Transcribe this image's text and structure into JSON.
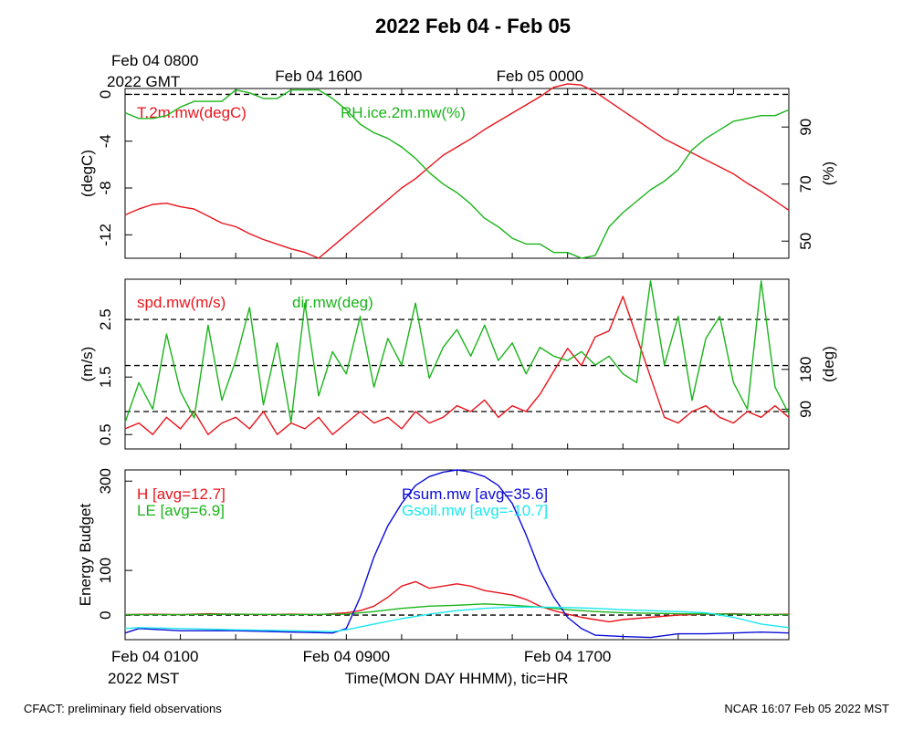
{
  "page": {
    "title": "2022 Feb 04 - Feb 05",
    "footer_left": "CFACT: preliminary field observations",
    "footer_right": "NCAR 16:07 Feb 05 2022 MST"
  },
  "colors": {
    "red": "#e8141c",
    "green": "#1ab41a",
    "blue": "#0a0ad8",
    "cyan": "#18e8ee",
    "black": "#000000"
  },
  "chart_data": [
    {
      "type": "line",
      "panel": "temperature-humidity",
      "top_axis": {
        "title": "Feb 04 0800",
        "title2": "2022 GMT",
        "labels": [
          {
            "x": 7,
            "text": "Feb 04 1600"
          },
          {
            "x": 15,
            "text": "Feb 05 0000"
          }
        ]
      },
      "x_range": [
        0,
        24
      ],
      "x_ticks": [
        0,
        2,
        4,
        6,
        8,
        10,
        12,
        14,
        16,
        18,
        20,
        22,
        24
      ],
      "left_axis": {
        "label": "(degC)",
        "ylim": [
          -14,
          0.5
        ],
        "ticks": [
          0,
          -4,
          -8,
          -12
        ]
      },
      "right_axis": {
        "label": "(%)",
        "ylim": [
          44,
          103.5
        ],
        "ticks": [
          90,
          70,
          50
        ]
      },
      "ref_lines_left": [
        0
      ],
      "series": [
        {
          "name": "T.2m.mw(degC)",
          "axis": "left",
          "color": "red",
          "x": [
            0,
            0.5,
            1,
            1.5,
            2,
            2.5,
            3,
            3.5,
            4,
            4.5,
            5,
            5.5,
            6,
            6.5,
            7,
            7.5,
            8,
            8.5,
            9,
            9.5,
            10,
            10.5,
            11,
            11.5,
            12,
            12.5,
            13,
            13.5,
            14,
            14.5,
            15,
            15.5,
            16,
            16.5,
            17,
            17.5,
            18,
            18.5,
            19,
            19.5,
            20,
            20.5,
            21,
            21.5,
            22,
            22.5,
            23,
            23.5,
            24
          ],
          "y": [
            -10.3,
            -9.8,
            -9.4,
            -9.3,
            -9.6,
            -9.8,
            -10.4,
            -11.0,
            -11.3,
            -11.9,
            -12.4,
            -12.8,
            -13.2,
            -13.5,
            -14.0,
            -13.0,
            -12.0,
            -11.0,
            -10.0,
            -9.0,
            -8.0,
            -7.2,
            -6.2,
            -5.2,
            -4.5,
            -3.8,
            -3.0,
            -2.3,
            -1.6,
            -0.9,
            -0.2,
            0.6,
            0.9,
            0.8,
            0.2,
            -0.6,
            -1.4,
            -2.2,
            -3.0,
            -3.8,
            -4.4,
            -5.0,
            -5.6,
            -6.2,
            -6.8,
            -7.6,
            -8.3,
            -9.1,
            -9.9
          ]
        },
        {
          "name": "RH.ice.2m.mw(%)",
          "axis": "right",
          "color": "green",
          "x": [
            0,
            0.5,
            1,
            1.5,
            2,
            2.5,
            3,
            3.5,
            4,
            4.5,
            5,
            5.5,
            6,
            6.5,
            7,
            7.5,
            8,
            8.5,
            9,
            9.5,
            10,
            10.5,
            11,
            11.5,
            12,
            12.5,
            13,
            13.5,
            14,
            14.5,
            15,
            15.5,
            16,
            16.5,
            17,
            17.5,
            18,
            18.5,
            19,
            19.5,
            20,
            20.5,
            21,
            21.5,
            22,
            22.5,
            23,
            23.5,
            24
          ],
          "y": [
            95,
            93,
            93,
            94,
            97,
            99,
            99,
            99,
            103,
            102,
            100,
            100,
            103,
            103,
            103,
            100,
            96,
            91,
            88,
            86,
            83,
            79,
            74,
            70,
            67,
            63,
            58,
            55,
            51,
            49,
            49,
            46,
            46,
            44,
            45,
            55,
            60,
            64,
            68,
            71,
            75,
            82,
            86,
            89,
            92,
            93,
            94,
            94,
            96
          ]
        }
      ]
    },
    {
      "type": "line",
      "panel": "wind",
      "x_range": [
        0,
        24
      ],
      "x_ticks": [
        0,
        2,
        4,
        6,
        8,
        10,
        12,
        14,
        16,
        18,
        20,
        22,
        24
      ],
      "left_axis": {
        "label": "(m/s)",
        "ylim": [
          0.25,
          3.2
        ],
        "ticks": [
          0.5,
          1.5,
          2.5
        ]
      },
      "right_axis": {
        "label": "(deg)",
        "ylim": [
          0,
          384
        ],
        "ticks": [
          90,
          180
        ]
      },
      "ref_lines_left": [
        0.9,
        1.7,
        2.5
      ],
      "series": [
        {
          "name": "spd.mw(m/s)",
          "axis": "left",
          "color": "red",
          "x": [
            0,
            0.5,
            1,
            1.5,
            2,
            2.5,
            3,
            3.5,
            4,
            4.5,
            5,
            5.5,
            6,
            6.5,
            7,
            7.5,
            8,
            8.5,
            9,
            9.5,
            10,
            10.5,
            11,
            11.5,
            12,
            12.5,
            13,
            13.5,
            14,
            14.5,
            15,
            15.5,
            16,
            16.5,
            17,
            17.5,
            18,
            18.5,
            19,
            19.5,
            20,
            20.5,
            21,
            21.5,
            22,
            22.5,
            23,
            23.5,
            24
          ],
          "y": [
            0.6,
            0.7,
            0.5,
            0.8,
            0.6,
            0.9,
            0.5,
            0.7,
            0.8,
            0.6,
            0.9,
            0.5,
            0.7,
            0.6,
            0.8,
            0.5,
            0.7,
            0.9,
            0.7,
            0.8,
            0.6,
            0.9,
            0.7,
            0.8,
            1.0,
            0.9,
            1.1,
            0.8,
            1.0,
            0.9,
            1.2,
            1.6,
            2.0,
            1.7,
            2.2,
            2.3,
            2.9,
            2.2,
            1.5,
            0.8,
            0.7,
            0.9,
            1.0,
            0.8,
            0.7,
            0.9,
            0.8,
            1.0,
            0.8
          ]
        },
        {
          "name": "dir.mw(deg)",
          "axis": "right",
          "color": "green",
          "x": [
            0,
            0.5,
            1,
            1.5,
            2,
            2.5,
            3,
            3.5,
            4,
            4.5,
            5,
            5.5,
            6,
            6.5,
            7,
            7.5,
            8,
            8.5,
            9,
            9.5,
            10,
            10.5,
            11,
            11.5,
            12,
            12.5,
            13,
            13.5,
            14,
            14.5,
            15,
            15.5,
            16,
            16.5,
            17,
            17.5,
            18,
            18.5,
            19,
            19.5,
            20,
            20.5,
            21,
            21.5,
            22,
            22.5,
            23,
            23.5,
            24
          ],
          "y": [
            60,
            150,
            90,
            260,
            130,
            70,
            280,
            110,
            200,
            320,
            100,
            240,
            60,
            330,
            120,
            220,
            170,
            300,
            140,
            250,
            190,
            330,
            160,
            230,
            270,
            210,
            280,
            200,
            240,
            170,
            230,
            210,
            200,
            220,
            190,
            210,
            170,
            150,
            380,
            190,
            300,
            110,
            250,
            300,
            150,
            90,
            380,
            140,
            80
          ]
        }
      ]
    },
    {
      "type": "line",
      "panel": "energy-budget",
      "bottom_axis": {
        "title": "Feb 04 0100",
        "title2": "2022 MST",
        "labels": [
          {
            "x": 8,
            "text": "Feb 04 0900"
          },
          {
            "x": 16,
            "text": "Feb 04 1700"
          }
        ],
        "xlabel": "Time(MON DAY HHMM), tic=HR"
      },
      "x_range": [
        0,
        24
      ],
      "x_ticks": [
        0,
        2,
        4,
        6,
        8,
        10,
        12,
        14,
        16,
        18,
        20,
        22,
        24
      ],
      "left_axis": {
        "label": "Energy Budget",
        "ylim": [
          -55,
          325
        ],
        "ticks": [
          0,
          100,
          300
        ]
      },
      "ref_lines_left": [
        0
      ],
      "series": [
        {
          "name": "H [avg=12.7]",
          "color": "red",
          "x": [
            0,
            1,
            2,
            3,
            4,
            5,
            6,
            7,
            8,
            8.5,
            9,
            9.5,
            10,
            10.5,
            11,
            11.5,
            12,
            12.5,
            13,
            13.5,
            14,
            14.5,
            15,
            15.5,
            16,
            16.5,
            17,
            17.5,
            18,
            19,
            20,
            21,
            22,
            23,
            24
          ],
          "y": [
            1,
            2,
            1,
            3,
            2,
            1,
            2,
            1,
            5,
            10,
            20,
            40,
            65,
            75,
            60,
            65,
            70,
            65,
            55,
            50,
            45,
            35,
            20,
            10,
            2,
            -5,
            -10,
            -15,
            -10,
            -5,
            0,
            2,
            3,
            1,
            2
          ]
        },
        {
          "name": "LE [avg=6.9]",
          "color": "green",
          "x": [
            0,
            2,
            4,
            6,
            8,
            9,
            10,
            11,
            12,
            13,
            14,
            15,
            16,
            17,
            18,
            20,
            22,
            24
          ],
          "y": [
            1,
            1,
            2,
            1,
            2,
            8,
            15,
            20,
            22,
            25,
            22,
            18,
            12,
            8,
            5,
            3,
            2,
            1
          ]
        },
        {
          "name": "Rsum.mw [avg=35.6]",
          "color": "blue",
          "x": [
            0,
            0.5,
            2,
            4,
            6,
            7.5,
            8,
            8.5,
            9,
            9.5,
            10,
            10.5,
            11,
            11.5,
            12,
            12.5,
            13,
            13.5,
            14,
            14.5,
            15,
            15.5,
            16,
            16.5,
            17,
            18,
            19,
            20,
            21,
            22,
            23,
            24
          ],
          "y": [
            -40,
            -30,
            -35,
            -35,
            -38,
            -40,
            -30,
            40,
            130,
            200,
            250,
            290,
            310,
            320,
            325,
            320,
            310,
            290,
            250,
            180,
            100,
            40,
            -5,
            -30,
            -45,
            -48,
            -50,
            -42,
            -42,
            -40,
            -38,
            -40
          ]
        },
        {
          "name": "Gsoil.mw [avg=-10.7]",
          "color": "cyan",
          "x": [
            0,
            0.5,
            2,
            4,
            6,
            7.5,
            8,
            9,
            10,
            11,
            12,
            13,
            14,
            15,
            16,
            17,
            18,
            19,
            20,
            21,
            22,
            23,
            24
          ],
          "y": [
            -30,
            -28,
            -30,
            -33,
            -35,
            -37,
            -33,
            -20,
            -8,
            2,
            10,
            15,
            18,
            18,
            17,
            15,
            12,
            10,
            8,
            5,
            -5,
            -20,
            -28
          ]
        }
      ]
    }
  ]
}
